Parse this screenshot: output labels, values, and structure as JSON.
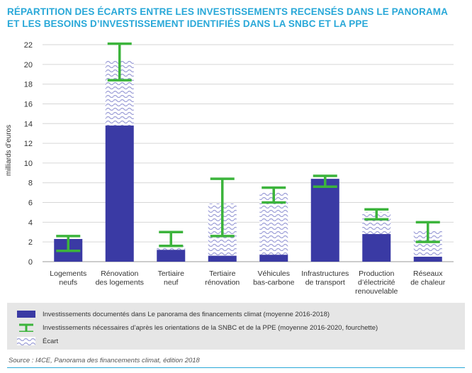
{
  "title_lines": [
    "RÉPARTITION DES ÉCARTS ENTRE LES INVESTISSEMENTS RECENSÉS DANS LE PANORAMA",
    "ET LES BESOINS D’INVESTISSEMENT IDENTIFIÉS DANS LA SNBC ET LA PPE"
  ],
  "legend": {
    "documented": "Investissements documentés dans Le panorama des financements climat (moyenne 2016-2018)",
    "needed": "Investissements nécessaires d’après les orientations de la SNBC et de la PPE (moyenne 2016-2020, fourchette)",
    "gap": "Écart"
  },
  "source": "Source : I4CE, Panorama des financements climat, édition 2018",
  "colors": {
    "bar": "#3a3aa4",
    "range": "#3cb43c",
    "hatch": "#9ea0d8",
    "title": "#29a8d8"
  },
  "chart_data": {
    "type": "bar",
    "ylabel": "milliards d’euros",
    "ylim": [
      0,
      22
    ],
    "yticks": [
      0,
      2,
      4,
      6,
      8,
      10,
      12,
      14,
      16,
      18,
      20,
      22
    ],
    "categories": [
      [
        "Logements",
        "neufs"
      ],
      [
        "Rénovation",
        "des logements"
      ],
      [
        "Tertiaire",
        "neuf"
      ],
      [
        "Tertiaire",
        "rénovation"
      ],
      [
        "Véhicules",
        "bas-carbone"
      ],
      [
        "Infrastructures",
        "de transport"
      ],
      [
        "Production",
        "d’électricité",
        "renouvelable"
      ],
      [
        "Réseaux",
        "de chaleur"
      ]
    ],
    "documented": [
      2.3,
      13.8,
      1.2,
      0.6,
      0.7,
      8.4,
      2.8,
      0.5
    ],
    "needed_low": [
      1.1,
      18.4,
      1.6,
      2.6,
      6.0,
      7.6,
      4.3,
      2.0
    ],
    "needed_high": [
      2.6,
      22.1,
      3.0,
      8.4,
      7.5,
      8.7,
      5.3,
      4.0
    ],
    "gap_top": [
      0,
      20.4,
      1.6,
      5.9,
      7.0,
      0,
      5.0,
      3.2
    ]
  }
}
